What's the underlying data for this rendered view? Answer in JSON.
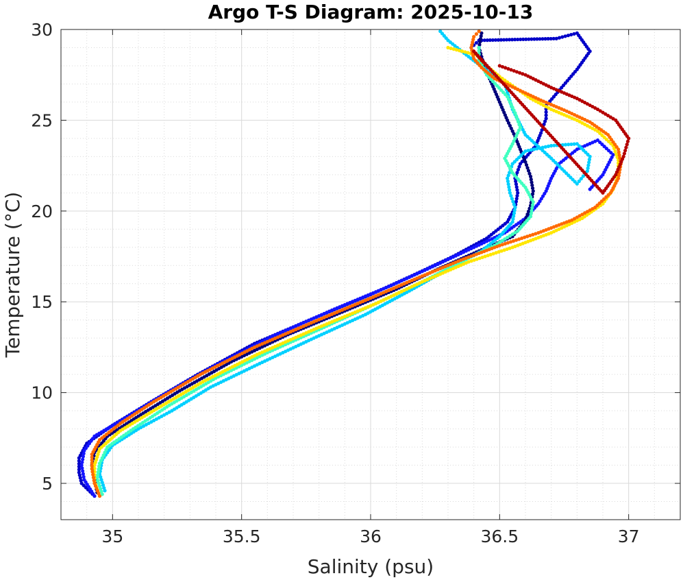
{
  "chart_data": {
    "type": "scatter",
    "title": "Argo T-S Diagram: 2025-10-13",
    "xlabel": "Salinity (psu)",
    "ylabel": "Temperature (°C)",
    "xlim": [
      34.8,
      37.2
    ],
    "ylim": [
      3,
      30
    ],
    "xticks": [
      35,
      35.5,
      36,
      36.5,
      37
    ],
    "xtick_labels": [
      "35",
      "35.5",
      "36",
      "36.5",
      "37"
    ],
    "yticks": [
      5,
      10,
      15,
      20,
      25,
      30
    ],
    "ytick_labels": [
      "5",
      "10",
      "15",
      "20",
      "25",
      "30"
    ],
    "xminor_step": 0.1,
    "yminor_step": 1,
    "grid": true,
    "minor_grid": true,
    "legend": "none",
    "series": [
      {
        "color": "#0000c8",
        "points": [
          [
            34.93,
            4.3
          ],
          [
            34.88,
            5
          ],
          [
            34.87,
            5.6
          ],
          [
            34.87,
            6.4
          ],
          [
            34.9,
            7.2
          ],
          [
            35.0,
            8.2
          ],
          [
            35.15,
            9.5
          ],
          [
            35.33,
            11
          ],
          [
            35.55,
            12.7
          ],
          [
            35.78,
            14.1
          ],
          [
            36.0,
            15.4
          ],
          [
            36.17,
            16.5
          ],
          [
            36.32,
            17.5
          ],
          [
            36.45,
            18.5
          ],
          [
            36.53,
            19.4
          ],
          [
            36.56,
            20.2
          ],
          [
            36.57,
            21
          ],
          [
            36.56,
            21.8
          ],
          [
            36.58,
            22.6
          ],
          [
            36.64,
            23.6
          ],
          [
            36.66,
            24.3
          ],
          [
            36.68,
            25.1
          ],
          [
            36.68,
            25.8
          ],
          [
            36.74,
            26.8
          ],
          [
            36.8,
            27.8
          ],
          [
            36.85,
            28.8
          ],
          [
            36.8,
            29.8
          ],
          [
            36.72,
            29.5
          ],
          [
            36.42,
            29.4
          ],
          [
            36.39,
            29.0
          ]
        ]
      },
      {
        "color": "#1414ff",
        "points": [
          [
            34.93,
            4.3
          ],
          [
            34.89,
            5.2
          ],
          [
            34.88,
            6
          ],
          [
            34.89,
            6.8
          ],
          [
            34.93,
            7.6
          ],
          [
            35.05,
            8.6
          ],
          [
            35.2,
            9.9
          ],
          [
            35.4,
            11.5
          ],
          [
            35.62,
            13.1
          ],
          [
            35.86,
            14.6
          ],
          [
            36.08,
            15.9
          ],
          [
            36.25,
            17
          ],
          [
            36.4,
            18
          ],
          [
            36.52,
            18.8
          ],
          [
            36.6,
            19.6
          ],
          [
            36.65,
            20.4
          ],
          [
            36.68,
            21.1
          ],
          [
            36.7,
            21.8
          ],
          [
            36.73,
            22.6
          ],
          [
            36.8,
            23.4
          ],
          [
            36.88,
            23.9
          ],
          [
            36.94,
            23.1
          ],
          [
            36.9,
            22.0
          ],
          [
            36.85,
            21.2
          ]
        ]
      },
      {
        "color": "#00007a",
        "points": [
          [
            34.94,
            4.5
          ],
          [
            34.93,
            5.2
          ],
          [
            34.92,
            6
          ],
          [
            34.93,
            6.7
          ],
          [
            34.98,
            7.6
          ],
          [
            35.1,
            8.7
          ],
          [
            35.26,
            10.1
          ],
          [
            35.46,
            11.7
          ],
          [
            35.68,
            13.2
          ],
          [
            35.9,
            14.5
          ],
          [
            36.1,
            15.7
          ],
          [
            36.26,
            16.8
          ],
          [
            36.42,
            17.8
          ],
          [
            36.55,
            18.6
          ],
          [
            36.6,
            19.5
          ],
          [
            36.62,
            20.3
          ],
          [
            36.63,
            21.1
          ],
          [
            36.62,
            21.9
          ],
          [
            36.6,
            22.7
          ],
          [
            36.58,
            23.4
          ],
          [
            36.56,
            24.1
          ],
          [
            36.53,
            25.0
          ],
          [
            36.5,
            26.0
          ],
          [
            36.47,
            27.0
          ],
          [
            36.44,
            28.0
          ],
          [
            36.42,
            29.0
          ],
          [
            36.43,
            29.8
          ]
        ]
      },
      {
        "color": "#00d0ff",
        "points": [
          [
            34.97,
            4.6
          ],
          [
            34.95,
            5.5
          ],
          [
            34.96,
            6.3
          ],
          [
            35.0,
            7.1
          ],
          [
            35.1,
            8.0
          ],
          [
            35.23,
            9.0
          ],
          [
            35.38,
            10.3
          ],
          [
            35.57,
            11.6
          ],
          [
            35.78,
            13.0
          ],
          [
            35.98,
            14.3
          ],
          [
            36.15,
            15.6
          ],
          [
            36.3,
            16.8
          ],
          [
            36.43,
            17.8
          ],
          [
            36.5,
            18.6
          ],
          [
            36.55,
            19.4
          ],
          [
            36.56,
            20.2
          ],
          [
            36.54,
            21.0
          ],
          [
            36.53,
            21.8
          ],
          [
            36.55,
            22.6
          ],
          [
            36.6,
            23.3
          ],
          [
            36.7,
            23.6
          ],
          [
            36.8,
            23.7
          ],
          [
            36.85,
            23.0
          ],
          [
            36.84,
            22.2
          ],
          [
            36.8,
            21.5
          ],
          [
            36.75,
            22.2
          ],
          [
            36.7,
            22.9
          ],
          [
            36.6,
            24.2
          ],
          [
            36.55,
            25.6
          ],
          [
            36.52,
            27.0
          ],
          [
            36.38,
            28.5
          ],
          [
            36.3,
            29.4
          ],
          [
            36.27,
            29.9
          ]
        ]
      },
      {
        "color": "#40ffc0",
        "points": [
          [
            34.96,
            4.4
          ],
          [
            34.94,
            5.3
          ],
          [
            34.95,
            6.1
          ],
          [
            34.98,
            7.0
          ],
          [
            35.08,
            8.0
          ],
          [
            35.22,
            9.3
          ],
          [
            35.4,
            10.8
          ],
          [
            35.6,
            12.2
          ],
          [
            35.82,
            13.6
          ],
          [
            36.02,
            14.9
          ],
          [
            36.2,
            16.1
          ],
          [
            36.35,
            17.2
          ],
          [
            36.48,
            18.1
          ],
          [
            36.57,
            18.9
          ],
          [
            36.62,
            19.7
          ],
          [
            36.63,
            20.5
          ],
          [
            36.6,
            21.3
          ],
          [
            36.55,
            22.1
          ],
          [
            36.52,
            22.9
          ],
          [
            36.55,
            23.7
          ],
          [
            36.58,
            24.6
          ],
          [
            36.56,
            25.4
          ],
          [
            36.53,
            26.3
          ],
          [
            36.45,
            27.5
          ],
          [
            36.42,
            28.3
          ],
          [
            36.42,
            29.0
          ]
        ]
      },
      {
        "color": "#ffe600",
        "points": [
          [
            34.95,
            4.3
          ],
          [
            34.93,
            5.1
          ],
          [
            34.93,
            6
          ],
          [
            34.95,
            6.9
          ],
          [
            35.03,
            7.9
          ],
          [
            35.17,
            9.1
          ],
          [
            35.35,
            10.6
          ],
          [
            35.56,
            12.1
          ],
          [
            35.8,
            13.6
          ],
          [
            36.02,
            14.9
          ],
          [
            36.2,
            16.1
          ],
          [
            36.38,
            17.2
          ],
          [
            36.55,
            18.0
          ],
          [
            36.7,
            18.8
          ],
          [
            36.82,
            19.6
          ],
          [
            36.9,
            20.4
          ],
          [
            36.94,
            21.2
          ],
          [
            36.96,
            22.0
          ],
          [
            36.96,
            22.8
          ],
          [
            36.94,
            23.6
          ],
          [
            36.88,
            24.4
          ],
          [
            36.8,
            25.0
          ],
          [
            36.7,
            25.6
          ],
          [
            36.62,
            26.2
          ],
          [
            36.56,
            26.8
          ],
          [
            36.5,
            27.4
          ],
          [
            36.45,
            28.0
          ],
          [
            36.41,
            28.6
          ],
          [
            36.3,
            29.0
          ]
        ]
      },
      {
        "color": "#ff6a00",
        "points": [
          [
            34.95,
            4.3
          ],
          [
            34.93,
            5.0
          ],
          [
            34.92,
            5.8
          ],
          [
            34.92,
            6.6
          ],
          [
            34.95,
            7.4
          ],
          [
            35.03,
            8.3
          ],
          [
            35.16,
            9.5
          ],
          [
            35.34,
            11.0
          ],
          [
            35.55,
            12.5
          ],
          [
            35.78,
            13.9
          ],
          [
            36.0,
            15.2
          ],
          [
            36.18,
            16.3
          ],
          [
            36.35,
            17.3
          ],
          [
            36.5,
            18.1
          ],
          [
            36.65,
            18.8
          ],
          [
            36.78,
            19.5
          ],
          [
            36.87,
            20.2
          ],
          [
            36.93,
            21.0
          ],
          [
            36.96,
            21.8
          ],
          [
            36.97,
            22.6
          ],
          [
            36.96,
            23.4
          ],
          [
            36.92,
            24.2
          ],
          [
            36.85,
            24.9
          ],
          [
            36.76,
            25.5
          ],
          [
            36.66,
            26.1
          ],
          [
            36.57,
            26.7
          ],
          [
            36.48,
            27.3
          ],
          [
            36.43,
            27.9
          ],
          [
            36.4,
            28.4
          ],
          [
            36.39,
            29.0
          ],
          [
            36.4,
            29.6
          ],
          [
            36.42,
            29.9
          ]
        ]
      },
      {
        "color": "#b40000",
        "points": [
          [
            36.5,
            28.0
          ],
          [
            36.6,
            27.5
          ],
          [
            36.7,
            26.8
          ],
          [
            36.8,
            26.2
          ],
          [
            36.88,
            25.6
          ],
          [
            36.95,
            25.0
          ],
          [
            37.0,
            24.0
          ],
          [
            36.98,
            23.0
          ],
          [
            36.95,
            22.0
          ],
          [
            36.9,
            21.0
          ],
          [
            36.4,
            28.8
          ],
          [
            36.43,
            28.3
          ]
        ]
      }
    ]
  }
}
